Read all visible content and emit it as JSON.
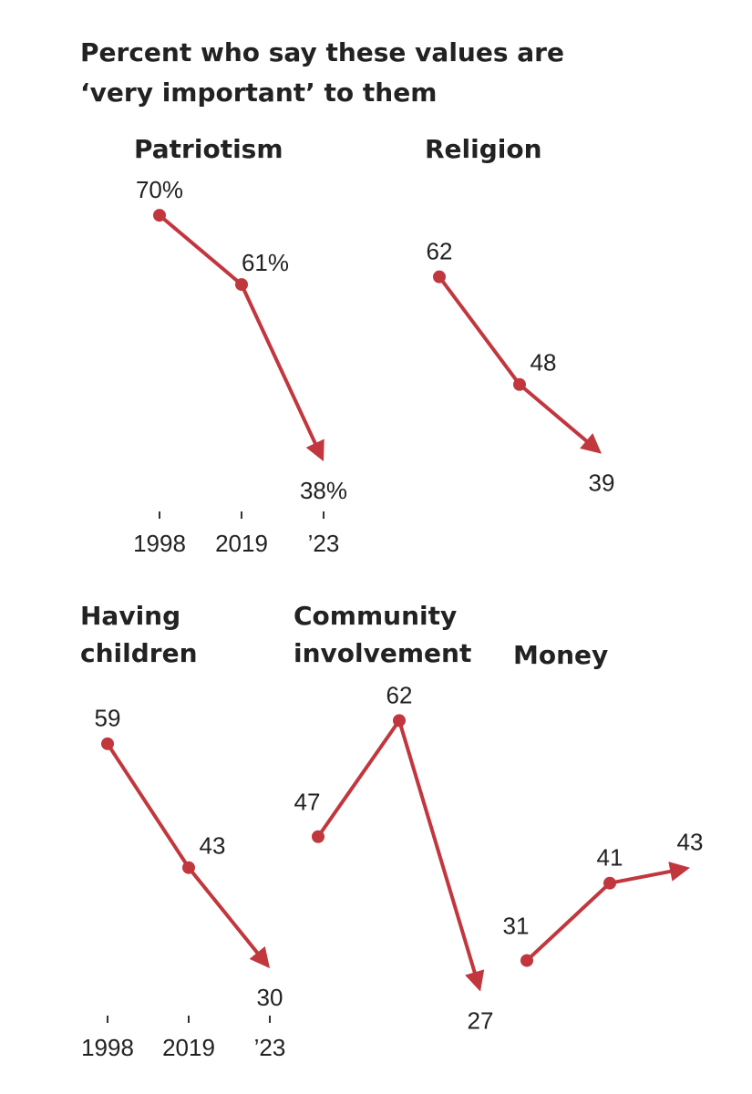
{
  "title": "Percent who say these values are ‘very important’ to them",
  "chart_data": [
    {
      "type": "line",
      "title": "Patriotism",
      "categories": [
        "1998",
        "2019",
        "’23"
      ],
      "ylim": [
        20,
        75
      ],
      "series": [
        {
          "color": "#c1373d",
          "values": [
            70,
            61,
            38
          ],
          "value_labels": [
            "70%",
            "61%",
            "38%"
          ]
        }
      ]
    },
    {
      "type": "line",
      "title": "Religion",
      "categories": [
        null,
        null,
        null
      ],
      "ylim": [
        20,
        75
      ],
      "series": [
        {
          "color": "#c1373d",
          "values": [
            62,
            48,
            39
          ]
        }
      ]
    },
    {
      "type": "line",
      "title": "Having children",
      "categories": [
        "1998",
        "2019",
        "’23"
      ],
      "ylim": [
        20,
        75
      ],
      "series": [
        {
          "color": "#c1373d",
          "values": [
            59,
            43,
            30
          ]
        }
      ]
    },
    {
      "type": "line",
      "title": "Community involvement",
      "categories": [
        null,
        null,
        null
      ],
      "ylim": [
        20,
        75
      ],
      "series": [
        {
          "color": "#c1373d",
          "values": [
            47,
            62,
            27
          ]
        }
      ]
    },
    {
      "type": "line",
      "title": "Money",
      "categories": [
        null,
        null,
        null
      ],
      "ylim": [
        20,
        75
      ],
      "series": [
        {
          "color": "#c1373d",
          "values": [
            31,
            41,
            43
          ]
        }
      ]
    }
  ]
}
